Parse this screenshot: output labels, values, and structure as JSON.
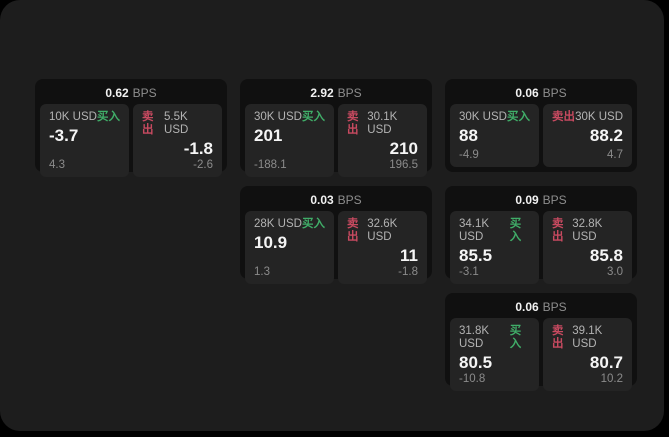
{
  "labels": {
    "bps_unit": "BPS",
    "buy": "买入",
    "sell": "卖出"
  },
  "colors": {
    "panel_bg": "#1d1d1d",
    "card_bg": "#101010",
    "tile_bg": "#242424",
    "buy_green": "#40ad68",
    "sell_red": "#c84a60"
  },
  "cards": [
    {
      "bps_value": "0.62",
      "buy": {
        "amount": "10K USD",
        "value": "-3.7",
        "sub": "4.3"
      },
      "sell": {
        "amount": "5.5K USD",
        "value": "-1.8",
        "sub": "-2.6"
      }
    },
    {
      "bps_value": "2.92",
      "buy": {
        "amount": "30K USD",
        "value": "201",
        "sub": "-188.1"
      },
      "sell": {
        "amount": "30.1K USD",
        "value": "210",
        "sub": "196.5"
      }
    },
    {
      "bps_value": "0.06",
      "buy": {
        "amount": "30K USD",
        "value": "88",
        "sub": "-4.9"
      },
      "sell": {
        "amount": "30K USD",
        "value": "88.2",
        "sub": "4.7"
      }
    },
    {
      "bps_value": "0.03",
      "buy": {
        "amount": "28K USD",
        "value": "10.9",
        "sub": "1.3"
      },
      "sell": {
        "amount": "32.6K USD",
        "value": "11",
        "sub": "-1.8"
      }
    },
    {
      "bps_value": "0.09",
      "buy": {
        "amount": "34.1K USD",
        "value": "85.5",
        "sub": "-3.1"
      },
      "sell": {
        "amount": "32.8K USD",
        "value": "85.8",
        "sub": "3.0"
      }
    },
    {
      "bps_value": "0.06",
      "buy": {
        "amount": "31.8K USD",
        "value": "80.5",
        "sub": "-10.8"
      },
      "sell": {
        "amount": "39.1K USD",
        "value": "80.7",
        "sub": "10.2"
      }
    }
  ]
}
